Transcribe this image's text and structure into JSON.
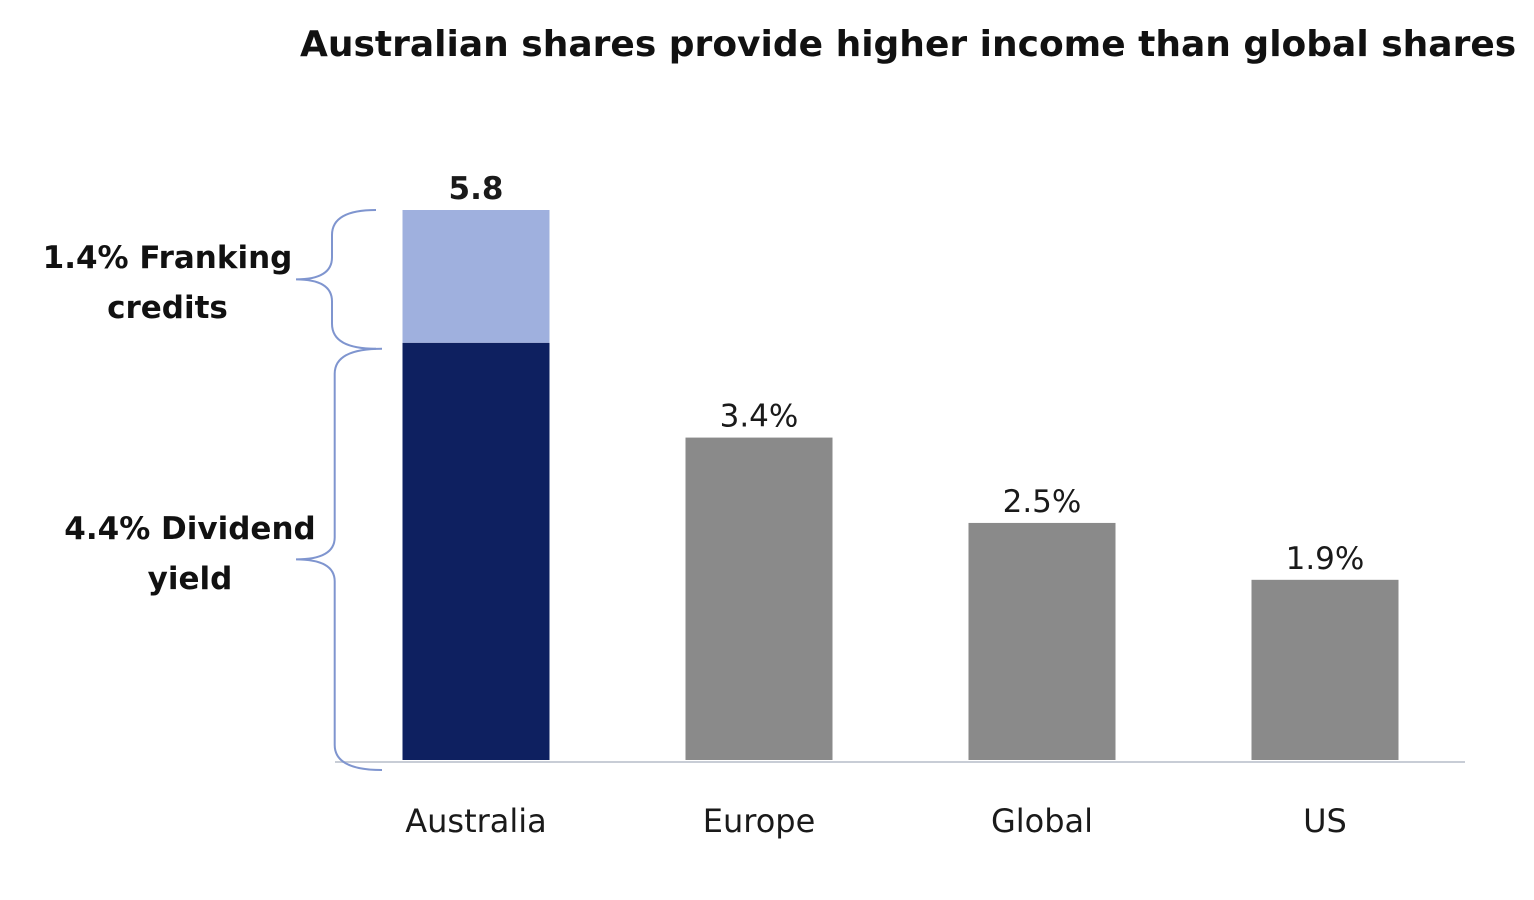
{
  "chart_data": {
    "type": "bar",
    "title": "Australian shares provide higher income than global shares",
    "categories": [
      "Australia",
      "Europe",
      "Global",
      "US"
    ],
    "series": [
      {
        "values": [
          4.4,
          3.4,
          2.5,
          1.9
        ]
      },
      {
        "values": [
          1.4,
          0,
          0,
          0
        ]
      }
    ],
    "stacked": true,
    "data_labels": [
      "5.8",
      "3.4%",
      "2.5%",
      "1.9%"
    ],
    "ylim": [
      0,
      6
    ],
    "grid": false,
    "annotations": {
      "franking": {
        "line1": "1.4% Franking",
        "line2": "credits"
      },
      "dividend": {
        "line1": "4.4% Dividend",
        "line2": "yield"
      }
    },
    "colors": {
      "dividend": "#0e2060",
      "franking": "#9fb0de",
      "other": "#8a8a8a",
      "axis": "#c8cdd6",
      "brace": "#7f95cf"
    }
  }
}
